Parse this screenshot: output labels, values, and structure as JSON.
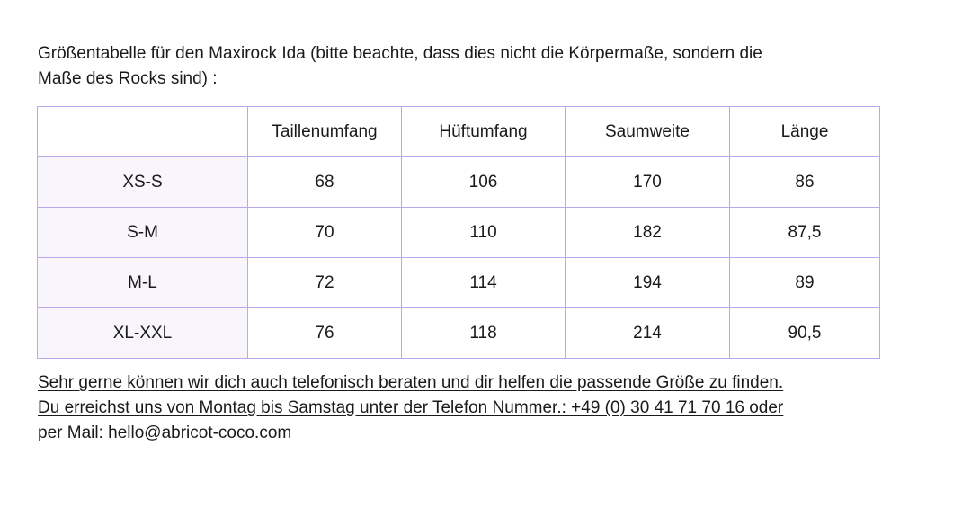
{
  "intro": {
    "line1": "Größentabelle für den Maxirock Ida (bitte beachte, dass dies nicht die Körpermaße, sondern die",
    "line2": "Maße des Rocks sind) :"
  },
  "table": {
    "corner": "",
    "columns": [
      "Taillenumfang",
      "Hüftumfang",
      "Saumweite",
      "Länge"
    ],
    "rows": [
      {
        "size": "XS-S",
        "values": [
          "68",
          "106",
          "170",
          "86"
        ]
      },
      {
        "size": "S-M",
        "values": [
          "70",
          "110",
          "182",
          "87,5"
        ]
      },
      {
        "size": "M-L",
        "values": [
          "72",
          "114",
          "194",
          "89"
        ]
      },
      {
        "size": "XL-XXL",
        "values": [
          "76",
          "118",
          "214",
          "90,5"
        ]
      }
    ]
  },
  "footer": {
    "line1": "Sehr gerne können wir dich auch telefonisch beraten und dir helfen die passende Größe zu finden.",
    "line2": "Du erreichst uns von Montag bis Samstag unter der Telefon Nummer.: +49 (0) 30 41 71 70 16 oder",
    "line3_prefix": "per Mail: ",
    "email": "hello@abricot-coco.com"
  },
  "colors": {
    "border": "#b9a8ea",
    "row_header_bg": "#f9f5fd",
    "text": "#1a1a1a"
  }
}
